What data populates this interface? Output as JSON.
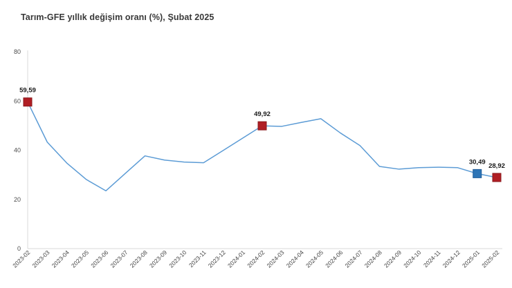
{
  "title": "Tarım-GFE yıllık değişim oranı (%), Şubat 2025",
  "colors": {
    "line": "#5B9BD5",
    "marker_red": "#B01E24",
    "marker_red_border": "#8a181c",
    "marker_blue": "#2E75B6",
    "marker_blue_border": "#1f5c99",
    "axis": "#d9d9d9",
    "background": "#ffffff"
  },
  "chart_data": {
    "type": "line",
    "title": "Tarım-GFE yıllık değişim oranı (%), Şubat 2025",
    "xlabel": "",
    "ylabel": "",
    "ylim": [
      0,
      80
    ],
    "yticks": [
      0,
      20,
      40,
      60,
      80
    ],
    "grid": false,
    "legend": false,
    "categories": [
      "2023-02",
      "2023-03",
      "2023-04",
      "2023-05",
      "2023-06",
      "2023-07",
      "2023-08",
      "2023-09",
      "2023-10",
      "2023-11",
      "2023-12",
      "2024-01",
      "2024-02",
      "2024-03",
      "2024-04",
      "2024-05",
      "2024-06",
      "2024-07",
      "2024-08",
      "2024-09",
      "2024-10",
      "2024-11",
      "2024-12",
      "2025-01",
      "2025-02"
    ],
    "values": [
      59.59,
      43.3,
      34.8,
      28.1,
      23.5,
      30.6,
      37.7,
      36.0,
      35.2,
      34.9,
      39.9,
      44.9,
      49.92,
      49.7,
      51.3,
      52.8,
      47.0,
      41.9,
      33.4,
      32.3,
      32.9,
      33.1,
      32.9,
      30.49,
      28.92
    ],
    "annotations": [
      {
        "index": 0,
        "category": "2023-02",
        "label": "59,59",
        "marker": "red"
      },
      {
        "index": 12,
        "category": "2024-02",
        "label": "49,92",
        "marker": "red"
      },
      {
        "index": 23,
        "category": "2025-01",
        "label": "30,49",
        "marker": "blue"
      },
      {
        "index": 24,
        "category": "2025-02",
        "label": "28,92",
        "marker": "red"
      }
    ]
  }
}
